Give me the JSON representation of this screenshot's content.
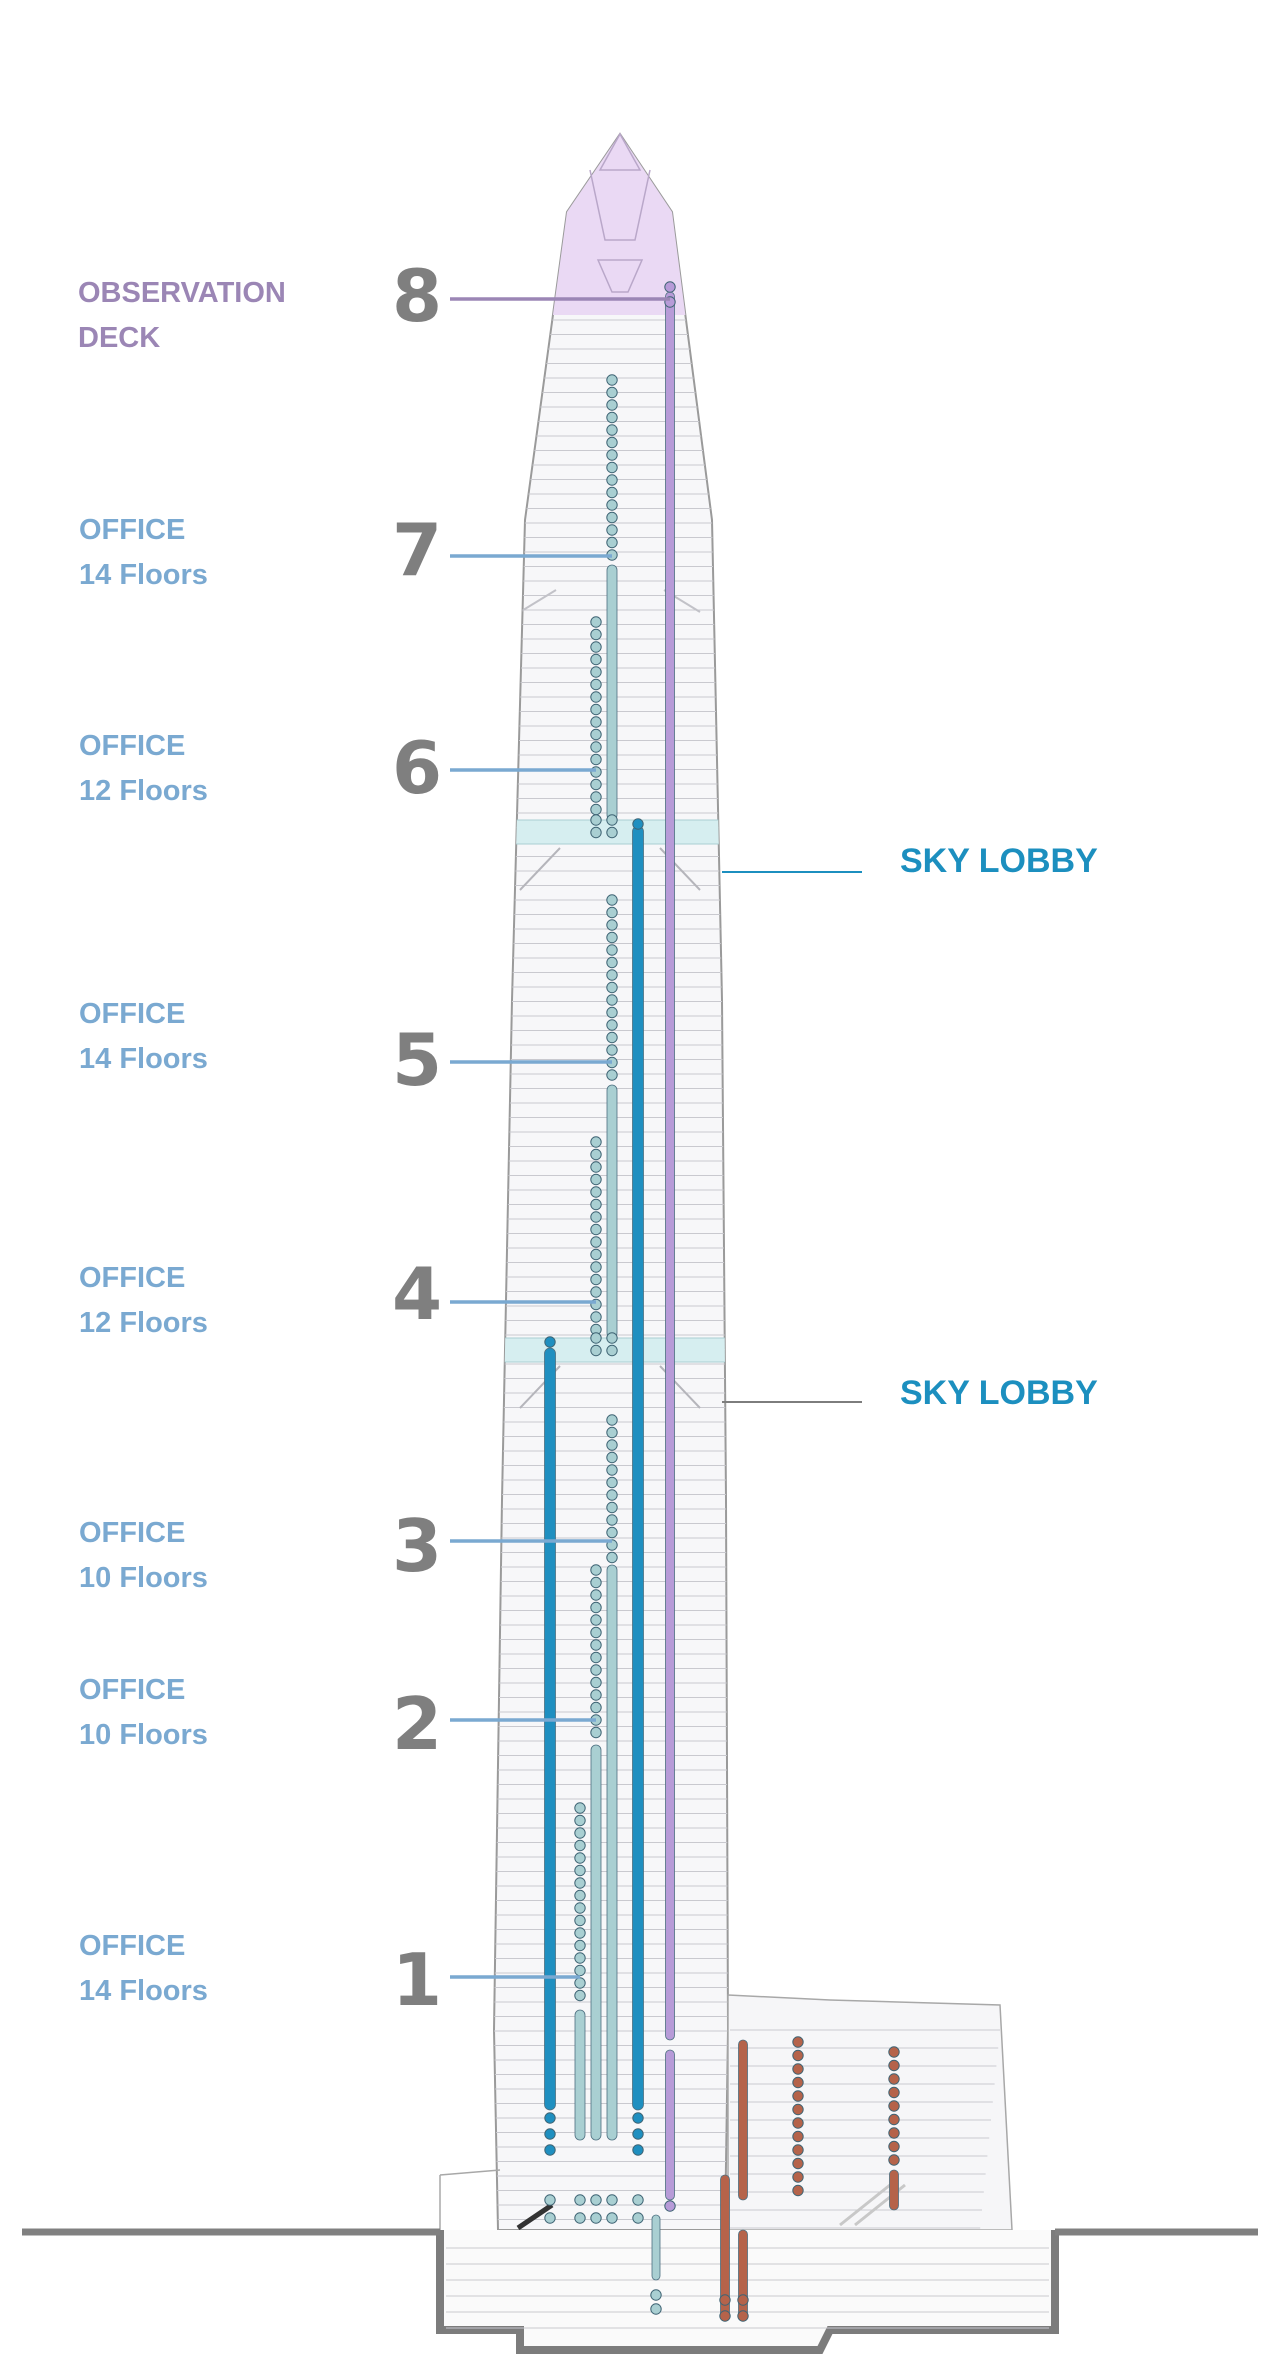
{
  "colors": {
    "observation": "#9b86b5",
    "office": "#7aa9d1",
    "zone_number": "#7f7f7f",
    "sky_lobby": "#1c8fbf",
    "express_shuttle": "#1f8fc0",
    "local_car": "#a9cfd2",
    "observation_shuttle": "#b79bd8",
    "service_car": "#b5634a",
    "tower_outline": "#9a9a9a",
    "ground": "#808080"
  },
  "zones": [
    {
      "number": "8",
      "label1": "OBSERVATION",
      "label2": "DECK",
      "kind": "observation"
    },
    {
      "number": "7",
      "label1": "OFFICE",
      "label2": "14 Floors",
      "kind": "office"
    },
    {
      "number": "6",
      "label1": "OFFICE",
      "label2": "12 Floors",
      "kind": "office"
    },
    {
      "number": "5",
      "label1": "OFFICE",
      "label2": "14 Floors",
      "kind": "office"
    },
    {
      "number": "4",
      "label1": "OFFICE",
      "label2": "12 Floors",
      "kind": "office"
    },
    {
      "number": "3",
      "label1": "OFFICE",
      "label2": "10 Floors",
      "kind": "office"
    },
    {
      "number": "2",
      "label1": "OFFICE",
      "label2": "10 Floors",
      "kind": "office"
    },
    {
      "number": "1",
      "label1": "OFFICE",
      "label2": "14 Floors",
      "kind": "office"
    }
  ],
  "sky_lobbies": [
    {
      "label": "SKY LOBBY"
    },
    {
      "label": "SKY LOBBY"
    }
  ]
}
